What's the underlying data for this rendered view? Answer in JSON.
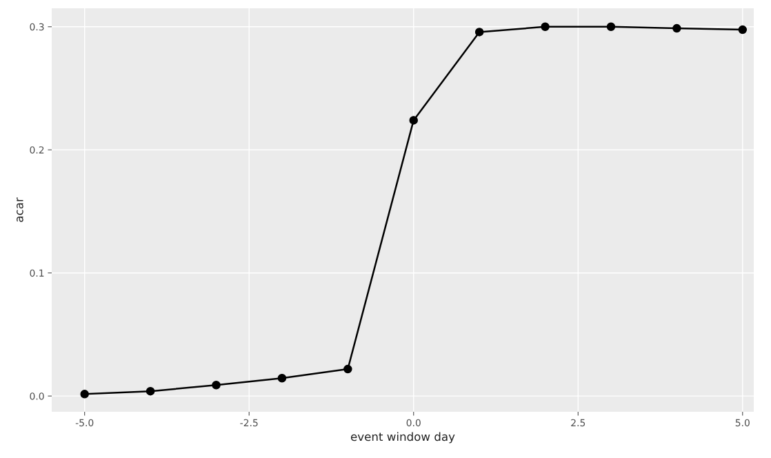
{
  "chart_data": {
    "type": "line",
    "xlabel": "event window day",
    "ylabel": "acar",
    "x": [
      -5,
      -4,
      -3,
      -2,
      -1,
      0,
      1,
      2,
      3,
      4,
      5
    ],
    "series": [
      {
        "color": "#000000",
        "values": [
          0.0016,
          0.0039,
          0.0089,
          0.0145,
          0.0219,
          0.224,
          0.2957,
          0.3,
          0.3,
          0.2987,
          0.2976
        ]
      }
    ],
    "xlim": [
      -5.5,
      5.17
    ],
    "ylim": [
      -0.0128,
      0.315
    ],
    "xticks": [
      {
        "value": -5,
        "label": "-5.0"
      },
      {
        "value": -2.5,
        "label": "-2.5"
      },
      {
        "value": 0,
        "label": "0.0"
      },
      {
        "value": 2.5,
        "label": "2.5"
      },
      {
        "value": 5,
        "label": "5.0"
      }
    ],
    "yticks": [
      {
        "value": 0,
        "label": "0.0"
      },
      {
        "value": 0.1,
        "label": "0.1"
      },
      {
        "value": 0.2,
        "label": "0.2"
      },
      {
        "value": 0.3,
        "label": "0.3"
      }
    ],
    "grid": true,
    "marker": "circle",
    "line_style": "solid",
    "legend": false
  }
}
